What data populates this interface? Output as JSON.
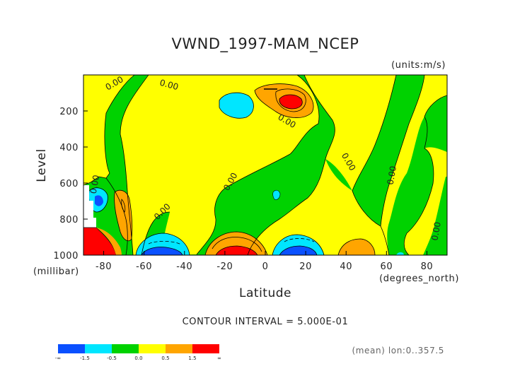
{
  "chart_data": {
    "type": "contour",
    "title": "VWND_1997-MAM_NCEP",
    "units": "(units:m/s)",
    "xlabel": "Latitude",
    "x_units": "(degrees_north)",
    "ylabel": "Level",
    "y_units": "(millibar)",
    "xlim": [
      -90,
      90
    ],
    "ylim": [
      1000,
      0
    ],
    "x_ticks": [
      "-80",
      "-60",
      "-40",
      "-20",
      "0",
      "20",
      "40",
      "60",
      "80"
    ],
    "x_tick_values": [
      -80,
      -60,
      -40,
      -20,
      0,
      20,
      40,
      60,
      80
    ],
    "y_ticks": [
      "200",
      "400",
      "600",
      "800",
      "1000"
    ],
    "y_tick_values": [
      200,
      400,
      600,
      800,
      1000
    ],
    "contour_interval": "CONTOUR INTERVAL = 5.000E-01",
    "footer": "(mean) lon:0..357.5",
    "contour_labels": [
      {
        "text": "0.00",
        "lat": -74,
        "level": 60,
        "angle": -30
      },
      {
        "text": "0.00",
        "lat": -48,
        "level": 70,
        "angle": 15
      },
      {
        "text": "0.00",
        "lat": 10,
        "level": 270,
        "angle": 30
      },
      {
        "text": "0.00",
        "lat": 40,
        "level": 490,
        "angle": 60
      },
      {
        "text": "0.00",
        "lat": 64,
        "level": 560,
        "angle": -80
      },
      {
        "text": "0.00",
        "lat": -83,
        "level": 610,
        "angle": -80
      },
      {
        "text": "0.00",
        "lat": -16,
        "level": 600,
        "angle": -60
      },
      {
        "text": "0.00",
        "lat": -50,
        "level": 770,
        "angle": -45
      },
      {
        "text": "0.00",
        "lat": 86,
        "level": 870,
        "angle": -80
      }
    ],
    "features": [
      {
        "sign": "positive",
        "lat": 11,
        "level": 150,
        "peak": 1.6
      },
      {
        "sign": "negative",
        "lat": -28,
        "level": 160,
        "peak": -0.7
      },
      {
        "sign": "positive",
        "lat": -71,
        "level": 750,
        "peak": 0.8
      },
      {
        "sign": "negative",
        "lat": -83,
        "level": 700,
        "peak": -0.8
      },
      {
        "sign": "positive",
        "lat": -84,
        "level": 970,
        "peak": 2.0
      },
      {
        "sign": "negative",
        "lat": -55,
        "level": 1000,
        "peak": -1.6
      },
      {
        "sign": "positive",
        "lat": -20,
        "level": 1000,
        "peak": 1.8
      },
      {
        "sign": "negative",
        "lat": 13,
        "level": 1000,
        "peak": -1.6
      },
      {
        "sign": "positive",
        "lat": 46,
        "level": 1000,
        "peak": 0.7
      }
    ],
    "legend": {
      "labels": [
        "-∞",
        "-1.5",
        "-0.5",
        "0.0",
        "0.5",
        "1.5",
        "∞"
      ],
      "colors": [
        "#0a50ff",
        "#00e6ff",
        "#00d200",
        "#ffff00",
        "#ffa500",
        "#ff0000"
      ]
    }
  }
}
